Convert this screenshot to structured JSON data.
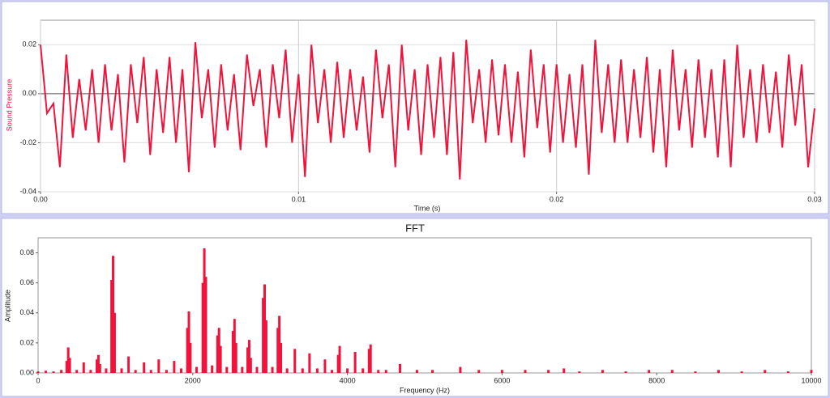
{
  "chart_data": [
    {
      "type": "line",
      "ylabel": "Sound Pressure",
      "xlabel": "Time (s)",
      "color": "#f0143c",
      "grid": true,
      "xlim": [
        0,
        0.03
      ],
      "ylim": [
        -0.04,
        0.03
      ],
      "xticks": [
        {
          "value": 0,
          "label": "0.00"
        },
        0.01,
        0.02,
        0.03
      ],
      "yticks": [
        -0.04,
        -0.02,
        {
          "value": 0,
          "label": "0.00"
        },
        0.02
      ],
      "x": [
        0,
        0.00025,
        0.0005,
        0.00075,
        0.001,
        0.00125,
        0.0015,
        0.00175,
        0.002,
        0.00225,
        0.0025,
        0.00275,
        0.003,
        0.00325,
        0.0035,
        0.00375,
        0.004,
        0.00425,
        0.0045,
        0.00475,
        0.005,
        0.00525,
        0.0055,
        0.00575,
        0.006,
        0.00625,
        0.0065,
        0.00675,
        0.007,
        0.00725,
        0.0075,
        0.00775,
        0.008,
        0.00825,
        0.0085,
        0.00875,
        0.009,
        0.00925,
        0.0095,
        0.00975,
        0.01,
        0.01025,
        0.0105,
        0.01075,
        0.011,
        0.01125,
        0.0115,
        0.01175,
        0.012,
        0.01225,
        0.0125,
        0.01275,
        0.013,
        0.01325,
        0.0135,
        0.01375,
        0.014,
        0.01425,
        0.0145,
        0.01475,
        0.015,
        0.01525,
        0.0155,
        0.01575,
        0.016,
        0.01625,
        0.0165,
        0.01675,
        0.017,
        0.01725,
        0.0175,
        0.01775,
        0.018,
        0.01825,
        0.0185,
        0.01875,
        0.019,
        0.01925,
        0.0195,
        0.01975,
        0.02,
        0.02025,
        0.0205,
        0.02075,
        0.021,
        0.02125,
        0.0215,
        0.02175,
        0.022,
        0.02225,
        0.0225,
        0.02275,
        0.023,
        0.02325,
        0.0235,
        0.02375,
        0.024,
        0.02425,
        0.0245,
        0.02475,
        0.025,
        0.02525,
        0.0255,
        0.02575,
        0.026,
        0.02625,
        0.0265,
        0.02675,
        0.027,
        0.02725,
        0.0275,
        0.02775,
        0.028,
        0.02825,
        0.0285,
        0.02875,
        0.029,
        0.02925,
        0.0295,
        0.02975,
        0.03
      ],
      "values": [
        0.02,
        -0.008,
        -0.004,
        -0.03,
        0.016,
        -0.018,
        0.006,
        -0.015,
        0.01,
        -0.02,
        0.012,
        -0.015,
        0.008,
        -0.028,
        0.012,
        -0.012,
        0.015,
        -0.025,
        0.01,
        -0.016,
        0.015,
        -0.02,
        0.01,
        -0.032,
        0.021,
        -0.01,
        0.01,
        -0.022,
        0.012,
        -0.015,
        0.008,
        -0.023,
        0.016,
        -0.005,
        0.01,
        -0.022,
        0.012,
        -0.01,
        0.018,
        -0.02,
        0.008,
        -0.034,
        0.02,
        -0.012,
        0.01,
        -0.02,
        0.013,
        -0.018,
        0.01,
        -0.015,
        0.007,
        -0.024,
        0.018,
        -0.01,
        0.012,
        -0.03,
        0.02,
        -0.015,
        0.01,
        -0.025,
        0.012,
        -0.018,
        0.015,
        -0.025,
        0.017,
        -0.035,
        0.022,
        -0.012,
        0.01,
        -0.02,
        0.014,
        -0.017,
        0.012,
        -0.02,
        0.009,
        -0.026,
        0.018,
        -0.014,
        0.012,
        -0.024,
        0.012,
        -0.02,
        0.008,
        -0.022,
        0.012,
        -0.033,
        0.022,
        -0.016,
        0.012,
        -0.02,
        0.014,
        -0.02,
        0.01,
        -0.018,
        0.015,
        -0.024,
        0.01,
        -0.03,
        0.018,
        -0.015,
        0.01,
        -0.022,
        0.014,
        -0.018,
        0.01,
        -0.026,
        0.014,
        -0.03,
        0.02,
        -0.018,
        0.01,
        -0.02,
        0.012,
        -0.016,
        0.009,
        -0.022,
        0.016,
        -0.013,
        0.012,
        -0.03,
        -0.006
      ]
    },
    {
      "type": "bar",
      "title": "FFT",
      "xlabel": "Frequency (Hz)",
      "ylabel": "Amplitude",
      "color": "#f0143c",
      "grid": false,
      "xlim": [
        0,
        10000
      ],
      "ylim": [
        0,
        0.09
      ],
      "xticks": [
        0,
        2000,
        4000,
        6000,
        8000,
        10000
      ],
      "yticks": [
        {
          "value": 0,
          "label": "0.00"
        },
        0.02,
        0.04,
        0.06,
        0.08
      ],
      "x": [
        0,
        100,
        200,
        300,
        370,
        390,
        410,
        500,
        590,
        680,
        760,
        780,
        800,
        880,
        950,
        970,
        990,
        1080,
        1170,
        1260,
        1370,
        1460,
        1560,
        1660,
        1760,
        1850,
        1930,
        1950,
        1970,
        2050,
        2130,
        2150,
        2170,
        2250,
        2320,
        2340,
        2360,
        2440,
        2520,
        2540,
        2560,
        2640,
        2710,
        2730,
        2750,
        2830,
        2910,
        2930,
        2950,
        3030,
        3100,
        3120,
        3140,
        3220,
        3320,
        3420,
        3510,
        3610,
        3710,
        3800,
        3880,
        3900,
        4000,
        4100,
        4200,
        4280,
        4300,
        4400,
        4500,
        4680,
        4900,
        5100,
        5460,
        5700,
        6000,
        6300,
        6600,
        6800,
        7000,
        7300,
        7600,
        7900,
        8200,
        8500,
        8800,
        9100,
        9400,
        9700,
        10000
      ],
      "values": [
        0.001,
        0.0015,
        0.001,
        0.002,
        0.008,
        0.017,
        0.01,
        0.002,
        0.007,
        0.002,
        0.009,
        0.012,
        0.006,
        0.003,
        0.062,
        0.078,
        0.04,
        0.003,
        0.011,
        0.002,
        0.007,
        0.002,
        0.009,
        0.002,
        0.008,
        0.003,
        0.03,
        0.041,
        0.02,
        0.004,
        0.06,
        0.083,
        0.064,
        0.005,
        0.025,
        0.03,
        0.018,
        0.004,
        0.028,
        0.036,
        0.02,
        0.004,
        0.017,
        0.022,
        0.01,
        0.004,
        0.05,
        0.059,
        0.035,
        0.004,
        0.03,
        0.038,
        0.02,
        0.003,
        0.016,
        0.003,
        0.013,
        0.003,
        0.009,
        0.002,
        0.012,
        0.018,
        0.003,
        0.014,
        0.003,
        0.016,
        0.019,
        0.002,
        0.002,
        0.006,
        0.002,
        0.002,
        0.004,
        0.002,
        0.002,
        0.002,
        0.002,
        0.003,
        0.001,
        0.002,
        0.001,
        0.002,
        0.002,
        0.001,
        0.002,
        0.001,
        0.002,
        0.001,
        0.002
      ]
    }
  ]
}
